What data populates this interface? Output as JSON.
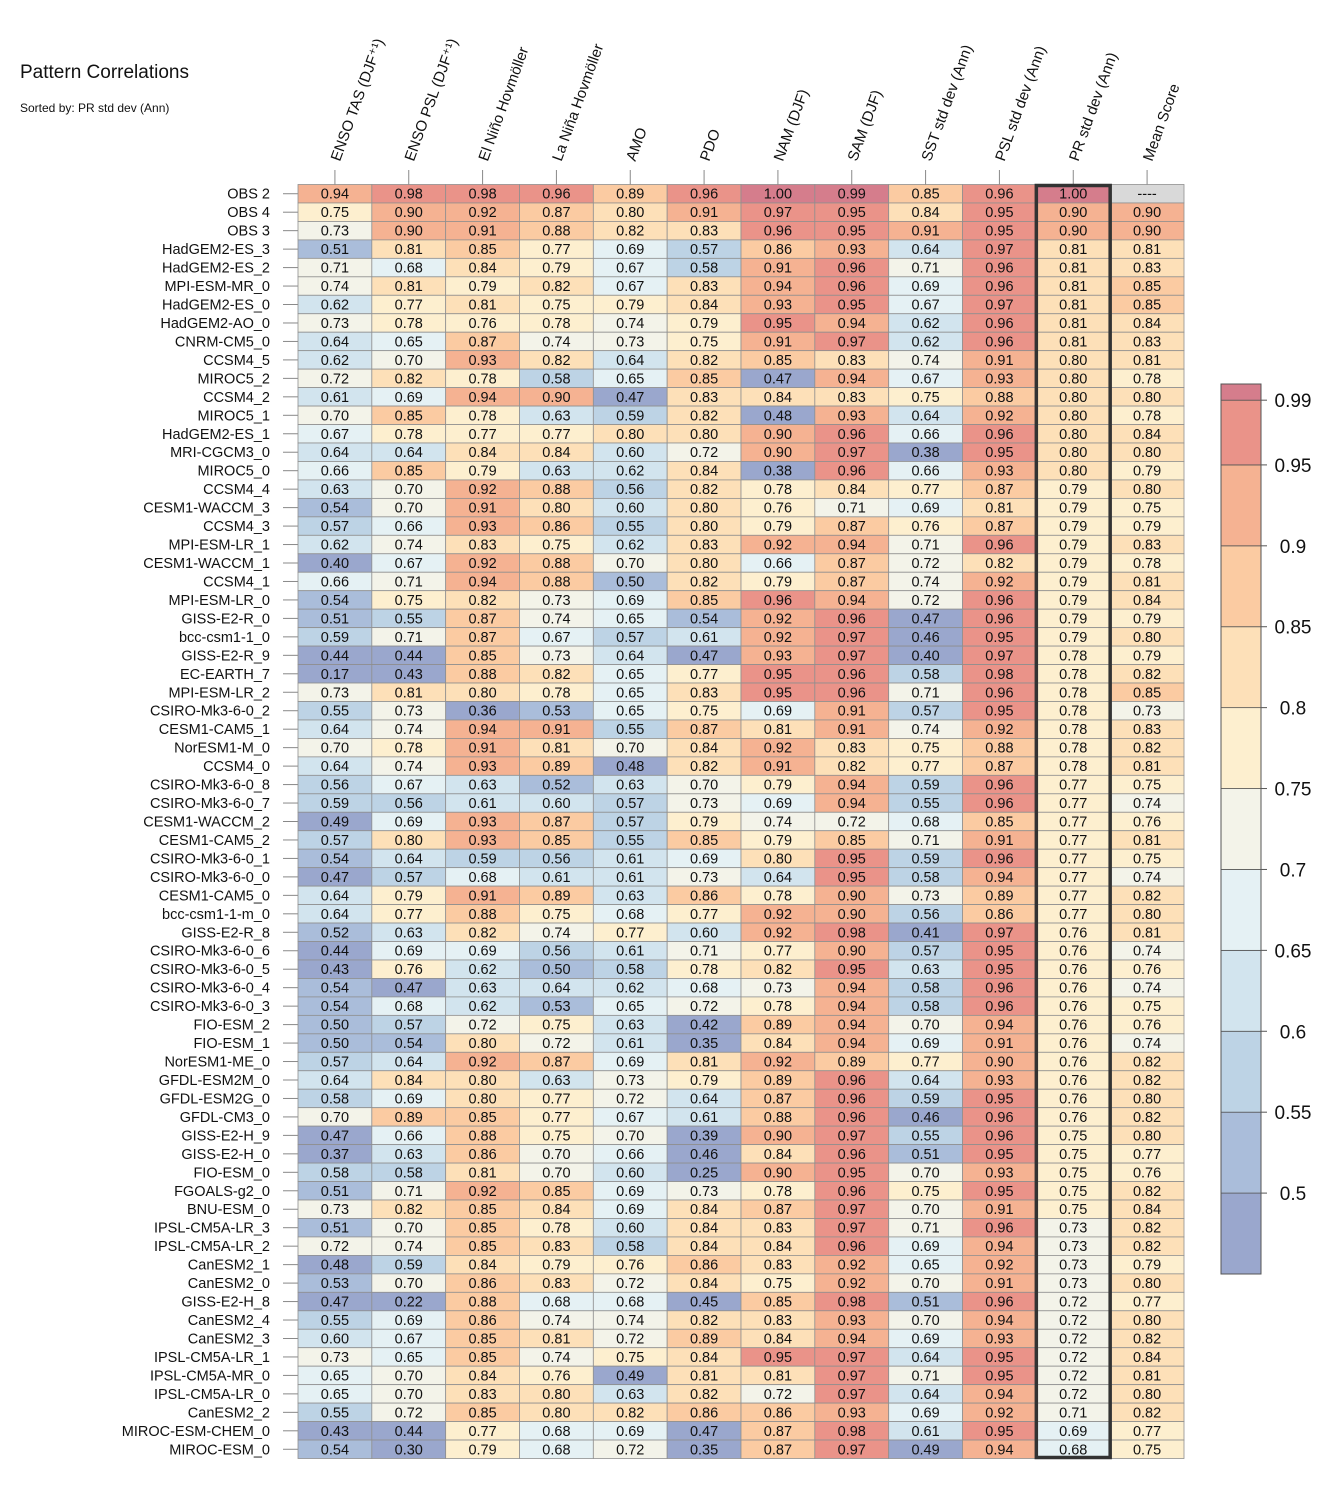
{
  "chart_data": {
    "type": "heatmap",
    "title": "Pattern Correlations",
    "subtitle": "Sorted by: PR std dev (Ann)",
    "columns": [
      "ENSO TAS (DJF⁺¹)",
      "ENSO PSL (DJF⁺¹)",
      "El Niño Hovmöller",
      "La Niña Hovmöller",
      "AMO",
      "PDO",
      "NAM (DJF)",
      "SAM (DJF)",
      "SST std dev (Ann)",
      "PSL std dev (Ann)",
      "PR std dev (Ann)",
      "Mean Score"
    ],
    "highlighted_column": "PR std dev (Ann)",
    "missing_label": "----",
    "rows": [
      {
        "name": "OBS 2",
        "values": [
          0.94,
          0.98,
          0.98,
          0.96,
          0.89,
          0.96,
          1.0,
          0.99,
          0.85,
          0.96,
          1.0,
          null
        ]
      },
      {
        "name": "OBS 4",
        "values": [
          0.75,
          0.9,
          0.92,
          0.87,
          0.8,
          0.91,
          0.97,
          0.95,
          0.84,
          0.95,
          0.9,
          0.9
        ]
      },
      {
        "name": "OBS 3",
        "values": [
          0.73,
          0.9,
          0.91,
          0.88,
          0.82,
          0.83,
          0.96,
          0.95,
          0.91,
          0.95,
          0.9,
          0.9
        ]
      },
      {
        "name": "HadGEM2-ES_3",
        "values": [
          0.51,
          0.81,
          0.85,
          0.77,
          0.69,
          0.57,
          0.86,
          0.93,
          0.64,
          0.97,
          0.81,
          0.81
        ]
      },
      {
        "name": "HadGEM2-ES_2",
        "values": [
          0.71,
          0.68,
          0.84,
          0.79,
          0.67,
          0.58,
          0.91,
          0.96,
          0.71,
          0.96,
          0.81,
          0.83
        ]
      },
      {
        "name": "MPI-ESM-MR_0",
        "values": [
          0.74,
          0.81,
          0.79,
          0.82,
          0.67,
          0.83,
          0.94,
          0.96,
          0.69,
          0.96,
          0.81,
          0.85
        ]
      },
      {
        "name": "HadGEM2-ES_0",
        "values": [
          0.62,
          0.77,
          0.81,
          0.75,
          0.79,
          0.84,
          0.93,
          0.95,
          0.67,
          0.97,
          0.81,
          0.85
        ]
      },
      {
        "name": "HadGEM2-AO_0",
        "values": [
          0.73,
          0.78,
          0.76,
          0.78,
          0.74,
          0.79,
          0.95,
          0.94,
          0.62,
          0.96,
          0.81,
          0.84
        ]
      },
      {
        "name": "CNRM-CM5_0",
        "values": [
          0.64,
          0.65,
          0.87,
          0.74,
          0.73,
          0.75,
          0.91,
          0.97,
          0.62,
          0.96,
          0.81,
          0.83
        ]
      },
      {
        "name": "CCSM4_5",
        "values": [
          0.62,
          0.7,
          0.93,
          0.82,
          0.64,
          0.82,
          0.85,
          0.83,
          0.74,
          0.91,
          0.8,
          0.81
        ]
      },
      {
        "name": "MIROC5_2",
        "values": [
          0.72,
          0.82,
          0.78,
          0.58,
          0.65,
          0.85,
          0.47,
          0.94,
          0.67,
          0.93,
          0.8,
          0.78
        ]
      },
      {
        "name": "CCSM4_2",
        "values": [
          0.61,
          0.69,
          0.94,
          0.9,
          0.47,
          0.83,
          0.84,
          0.83,
          0.75,
          0.88,
          0.8,
          0.8
        ]
      },
      {
        "name": "MIROC5_1",
        "values": [
          0.7,
          0.85,
          0.78,
          0.63,
          0.59,
          0.82,
          0.48,
          0.93,
          0.64,
          0.92,
          0.8,
          0.78
        ]
      },
      {
        "name": "HadGEM2-ES_1",
        "values": [
          0.67,
          0.78,
          0.77,
          0.77,
          0.8,
          0.8,
          0.9,
          0.96,
          0.66,
          0.96,
          0.8,
          0.84
        ]
      },
      {
        "name": "MRI-CGCM3_0",
        "values": [
          0.64,
          0.64,
          0.84,
          0.84,
          0.6,
          0.72,
          0.9,
          0.97,
          0.38,
          0.95,
          0.8,
          0.8
        ]
      },
      {
        "name": "MIROC5_0",
        "values": [
          0.66,
          0.85,
          0.79,
          0.63,
          0.62,
          0.84,
          0.38,
          0.96,
          0.66,
          0.93,
          0.8,
          0.79
        ]
      },
      {
        "name": "CCSM4_4",
        "values": [
          0.63,
          0.7,
          0.92,
          0.88,
          0.56,
          0.82,
          0.78,
          0.84,
          0.77,
          0.87,
          0.79,
          0.8
        ]
      },
      {
        "name": "CESM1-WACCM_3",
        "values": [
          0.54,
          0.7,
          0.91,
          0.8,
          0.6,
          0.8,
          0.76,
          0.71,
          0.69,
          0.81,
          0.79,
          0.75
        ]
      },
      {
        "name": "CCSM4_3",
        "values": [
          0.57,
          0.66,
          0.93,
          0.86,
          0.55,
          0.8,
          0.79,
          0.87,
          0.76,
          0.87,
          0.79,
          0.79
        ]
      },
      {
        "name": "MPI-ESM-LR_1",
        "values": [
          0.62,
          0.74,
          0.83,
          0.75,
          0.62,
          0.83,
          0.92,
          0.94,
          0.71,
          0.96,
          0.79,
          0.83
        ]
      },
      {
        "name": "CESM1-WACCM_1",
        "values": [
          0.4,
          0.67,
          0.92,
          0.88,
          0.7,
          0.8,
          0.66,
          0.87,
          0.72,
          0.82,
          0.79,
          0.78
        ]
      },
      {
        "name": "CCSM4_1",
        "values": [
          0.66,
          0.71,
          0.94,
          0.88,
          0.5,
          0.82,
          0.79,
          0.87,
          0.74,
          0.92,
          0.79,
          0.81
        ]
      },
      {
        "name": "MPI-ESM-LR_0",
        "values": [
          0.54,
          0.75,
          0.82,
          0.73,
          0.69,
          0.85,
          0.96,
          0.94,
          0.72,
          0.96,
          0.79,
          0.84
        ]
      },
      {
        "name": "GISS-E2-R_0",
        "values": [
          0.51,
          0.55,
          0.87,
          0.74,
          0.65,
          0.54,
          0.92,
          0.96,
          0.47,
          0.96,
          0.79,
          0.79
        ]
      },
      {
        "name": "bcc-csm1-1_0",
        "values": [
          0.59,
          0.71,
          0.87,
          0.67,
          0.57,
          0.61,
          0.92,
          0.97,
          0.46,
          0.95,
          0.79,
          0.8
        ]
      },
      {
        "name": "GISS-E2-R_9",
        "values": [
          0.44,
          0.44,
          0.85,
          0.73,
          0.64,
          0.47,
          0.93,
          0.97,
          0.4,
          0.97,
          0.78,
          0.79
        ]
      },
      {
        "name": "EC-EARTH_7",
        "values": [
          0.17,
          0.43,
          0.88,
          0.82,
          0.65,
          0.77,
          0.95,
          0.96,
          0.58,
          0.98,
          0.78,
          0.82
        ]
      },
      {
        "name": "MPI-ESM-LR_2",
        "values": [
          0.73,
          0.81,
          0.8,
          0.78,
          0.65,
          0.83,
          0.95,
          0.96,
          0.71,
          0.96,
          0.78,
          0.85
        ]
      },
      {
        "name": "CSIRO-Mk3-6-0_2",
        "values": [
          0.55,
          0.73,
          0.36,
          0.53,
          0.65,
          0.75,
          0.69,
          0.91,
          0.57,
          0.95,
          0.78,
          0.73
        ]
      },
      {
        "name": "CESM1-CAM5_1",
        "values": [
          0.64,
          0.74,
          0.94,
          0.91,
          0.55,
          0.87,
          0.81,
          0.91,
          0.74,
          0.92,
          0.78,
          0.83
        ]
      },
      {
        "name": "NorESM1-M_0",
        "values": [
          0.7,
          0.78,
          0.91,
          0.81,
          0.7,
          0.84,
          0.92,
          0.83,
          0.75,
          0.88,
          0.78,
          0.82
        ]
      },
      {
        "name": "CCSM4_0",
        "values": [
          0.64,
          0.74,
          0.93,
          0.89,
          0.48,
          0.82,
          0.91,
          0.82,
          0.77,
          0.87,
          0.78,
          0.81
        ]
      },
      {
        "name": "CSIRO-Mk3-6-0_8",
        "values": [
          0.56,
          0.67,
          0.63,
          0.52,
          0.63,
          0.7,
          0.79,
          0.94,
          0.59,
          0.96,
          0.77,
          0.75
        ]
      },
      {
        "name": "CSIRO-Mk3-6-0_7",
        "values": [
          0.59,
          0.56,
          0.61,
          0.6,
          0.57,
          0.73,
          0.69,
          0.94,
          0.55,
          0.96,
          0.77,
          0.74
        ]
      },
      {
        "name": "CESM1-WACCM_2",
        "values": [
          0.49,
          0.69,
          0.93,
          0.87,
          0.57,
          0.79,
          0.74,
          0.72,
          0.68,
          0.85,
          0.77,
          0.76
        ]
      },
      {
        "name": "CESM1-CAM5_2",
        "values": [
          0.57,
          0.8,
          0.93,
          0.85,
          0.55,
          0.85,
          0.79,
          0.85,
          0.71,
          0.91,
          0.77,
          0.81
        ]
      },
      {
        "name": "CSIRO-Mk3-6-0_1",
        "values": [
          0.54,
          0.64,
          0.59,
          0.56,
          0.61,
          0.69,
          0.8,
          0.95,
          0.59,
          0.96,
          0.77,
          0.75
        ]
      },
      {
        "name": "CSIRO-Mk3-6-0_0",
        "values": [
          0.47,
          0.57,
          0.68,
          0.61,
          0.61,
          0.73,
          0.64,
          0.95,
          0.58,
          0.94,
          0.77,
          0.74
        ]
      },
      {
        "name": "CESM1-CAM5_0",
        "values": [
          0.64,
          0.79,
          0.91,
          0.89,
          0.63,
          0.86,
          0.78,
          0.9,
          0.73,
          0.89,
          0.77,
          0.82
        ]
      },
      {
        "name": "bcc-csm1-1-m_0",
        "values": [
          0.64,
          0.77,
          0.88,
          0.75,
          0.68,
          0.77,
          0.92,
          0.9,
          0.56,
          0.86,
          0.77,
          0.8
        ]
      },
      {
        "name": "GISS-E2-R_8",
        "values": [
          0.52,
          0.63,
          0.82,
          0.74,
          0.77,
          0.6,
          0.92,
          0.98,
          0.41,
          0.97,
          0.76,
          0.81
        ]
      },
      {
        "name": "CSIRO-Mk3-6-0_6",
        "values": [
          0.44,
          0.69,
          0.69,
          0.56,
          0.61,
          0.71,
          0.77,
          0.9,
          0.57,
          0.95,
          0.76,
          0.74
        ]
      },
      {
        "name": "CSIRO-Mk3-6-0_5",
        "values": [
          0.43,
          0.76,
          0.62,
          0.5,
          0.58,
          0.78,
          0.82,
          0.95,
          0.63,
          0.95,
          0.76,
          0.76
        ]
      },
      {
        "name": "CSIRO-Mk3-6-0_4",
        "values": [
          0.54,
          0.47,
          0.63,
          0.64,
          0.62,
          0.68,
          0.73,
          0.94,
          0.58,
          0.96,
          0.76,
          0.74
        ]
      },
      {
        "name": "CSIRO-Mk3-6-0_3",
        "values": [
          0.54,
          0.68,
          0.62,
          0.53,
          0.65,
          0.72,
          0.78,
          0.94,
          0.58,
          0.96,
          0.76,
          0.75
        ]
      },
      {
        "name": "FIO-ESM_2",
        "values": [
          0.5,
          0.57,
          0.72,
          0.75,
          0.63,
          0.42,
          0.89,
          0.94,
          0.7,
          0.94,
          0.76,
          0.76
        ]
      },
      {
        "name": "FIO-ESM_1",
        "values": [
          0.5,
          0.54,
          0.8,
          0.72,
          0.61,
          0.35,
          0.84,
          0.94,
          0.69,
          0.91,
          0.76,
          0.74
        ]
      },
      {
        "name": "NorESM1-ME_0",
        "values": [
          0.57,
          0.64,
          0.92,
          0.87,
          0.69,
          0.81,
          0.92,
          0.89,
          0.77,
          0.9,
          0.76,
          0.82
        ]
      },
      {
        "name": "GFDL-ESM2M_0",
        "values": [
          0.64,
          0.84,
          0.8,
          0.63,
          0.73,
          0.79,
          0.89,
          0.96,
          0.64,
          0.93,
          0.76,
          0.82
        ]
      },
      {
        "name": "GFDL-ESM2G_0",
        "values": [
          0.58,
          0.69,
          0.8,
          0.77,
          0.72,
          0.64,
          0.87,
          0.96,
          0.59,
          0.95,
          0.76,
          0.8
        ]
      },
      {
        "name": "GFDL-CM3_0",
        "values": [
          0.7,
          0.89,
          0.85,
          0.77,
          0.67,
          0.61,
          0.88,
          0.96,
          0.46,
          0.96,
          0.76,
          0.82
        ]
      },
      {
        "name": "GISS-E2-H_9",
        "values": [
          0.47,
          0.66,
          0.88,
          0.75,
          0.7,
          0.39,
          0.9,
          0.97,
          0.55,
          0.96,
          0.75,
          0.8
        ]
      },
      {
        "name": "GISS-E2-H_0",
        "values": [
          0.37,
          0.63,
          0.86,
          0.7,
          0.66,
          0.46,
          0.84,
          0.96,
          0.51,
          0.95,
          0.75,
          0.77
        ]
      },
      {
        "name": "FIO-ESM_0",
        "values": [
          0.58,
          0.58,
          0.81,
          0.7,
          0.6,
          0.25,
          0.9,
          0.95,
          0.7,
          0.93,
          0.75,
          0.76
        ]
      },
      {
        "name": "FGOALS-g2_0",
        "values": [
          0.51,
          0.71,
          0.92,
          0.85,
          0.69,
          0.73,
          0.78,
          0.96,
          0.75,
          0.95,
          0.75,
          0.82
        ]
      },
      {
        "name": "BNU-ESM_0",
        "values": [
          0.73,
          0.82,
          0.85,
          0.84,
          0.69,
          0.84,
          0.87,
          0.97,
          0.7,
          0.91,
          0.75,
          0.84
        ]
      },
      {
        "name": "IPSL-CM5A-LR_3",
        "values": [
          0.51,
          0.7,
          0.85,
          0.78,
          0.6,
          0.84,
          0.83,
          0.97,
          0.71,
          0.96,
          0.73,
          0.82
        ]
      },
      {
        "name": "IPSL-CM5A-LR_2",
        "values": [
          0.72,
          0.74,
          0.85,
          0.83,
          0.58,
          0.84,
          0.84,
          0.96,
          0.69,
          0.94,
          0.73,
          0.82
        ]
      },
      {
        "name": "CanESM2_1",
        "values": [
          0.48,
          0.59,
          0.84,
          0.79,
          0.76,
          0.86,
          0.83,
          0.92,
          0.65,
          0.92,
          0.73,
          0.79
        ]
      },
      {
        "name": "CanESM2_0",
        "values": [
          0.53,
          0.7,
          0.86,
          0.83,
          0.72,
          0.84,
          0.75,
          0.92,
          0.7,
          0.91,
          0.73,
          0.8
        ]
      },
      {
        "name": "GISS-E2-H_8",
        "values": [
          0.47,
          0.22,
          0.88,
          0.68,
          0.68,
          0.45,
          0.85,
          0.98,
          0.51,
          0.96,
          0.72,
          0.77
        ]
      },
      {
        "name": "CanESM2_4",
        "values": [
          0.55,
          0.69,
          0.86,
          0.74,
          0.74,
          0.82,
          0.83,
          0.93,
          0.7,
          0.94,
          0.72,
          0.8
        ]
      },
      {
        "name": "CanESM2_3",
        "values": [
          0.6,
          0.67,
          0.85,
          0.81,
          0.72,
          0.89,
          0.84,
          0.94,
          0.69,
          0.93,
          0.72,
          0.82
        ]
      },
      {
        "name": "IPSL-CM5A-LR_1",
        "values": [
          0.73,
          0.65,
          0.85,
          0.74,
          0.75,
          0.84,
          0.95,
          0.97,
          0.64,
          0.95,
          0.72,
          0.84
        ]
      },
      {
        "name": "IPSL-CM5A-MR_0",
        "values": [
          0.65,
          0.7,
          0.84,
          0.76,
          0.49,
          0.81,
          0.81,
          0.97,
          0.71,
          0.95,
          0.72,
          0.81
        ]
      },
      {
        "name": "IPSL-CM5A-LR_0",
        "values": [
          0.65,
          0.7,
          0.83,
          0.8,
          0.63,
          0.82,
          0.72,
          0.97,
          0.64,
          0.94,
          0.72,
          0.8
        ]
      },
      {
        "name": "CanESM2_2",
        "values": [
          0.55,
          0.72,
          0.85,
          0.8,
          0.82,
          0.86,
          0.86,
          0.93,
          0.69,
          0.92,
          0.71,
          0.82
        ]
      },
      {
        "name": "MIROC-ESM-CHEM_0",
        "values": [
          0.43,
          0.44,
          0.77,
          0.68,
          0.69,
          0.47,
          0.87,
          0.98,
          0.61,
          0.95,
          0.69,
          0.77
        ]
      },
      {
        "name": "MIROC-ESM_0",
        "values": [
          0.54,
          0.3,
          0.79,
          0.68,
          0.72,
          0.35,
          0.87,
          0.97,
          0.49,
          0.94,
          0.68,
          0.75
        ]
      }
    ],
    "colorbar": {
      "range": [
        0.45,
        1.0
      ],
      "levels": [
        0.45,
        0.5,
        0.55,
        0.6,
        0.65,
        0.7,
        0.75,
        0.8,
        0.85,
        0.9,
        0.95,
        0.99,
        1.0
      ],
      "tick_labels": [
        "0.5",
        "0.55",
        "0.6",
        "0.65",
        "0.7",
        "0.75",
        "0.8",
        "0.85",
        "0.9",
        "0.95",
        "0.99"
      ],
      "colors": [
        "#9aa7cd",
        "#aabdda",
        "#bdd3e5",
        "#d2e4ee",
        "#e5f1f4",
        "#f3f3e9",
        "#fdefcf",
        "#fde0b8",
        "#fbcba2",
        "#f5b292",
        "#ea9389",
        "#d57d8c"
      ],
      "missing_color": "#d9d9d9"
    }
  }
}
